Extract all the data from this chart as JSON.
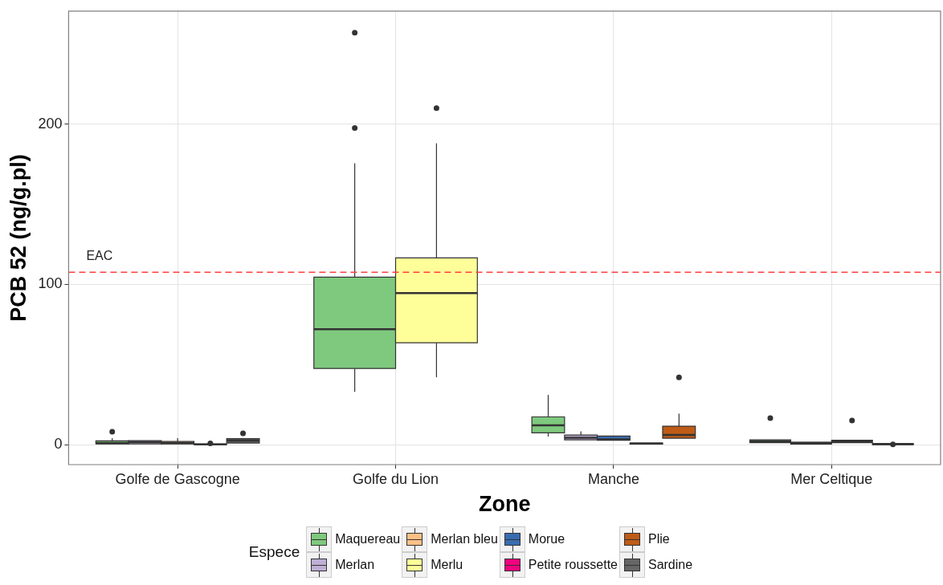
{
  "chart_data": {
    "type": "box",
    "xlabel": "Zone",
    "ylabel": "PCB 52 (ng/g.pl)",
    "legend_title": "Espece",
    "legend": "bottom",
    "grid": true,
    "categories": [
      "Golfe de Gascogne",
      "Golfe du Lion",
      "Manche",
      "Mer Celtique"
    ],
    "ylim": [
      -12.5,
      270.5
    ],
    "yticks": [
      0,
      100,
      200
    ],
    "ref_lines": [
      {
        "axis": "y",
        "value": 107.5,
        "label": "EAC",
        "color": "#ff4040",
        "line_style": "dashed"
      }
    ],
    "series": [
      {
        "name": "Maquereau",
        "color": "#7fc97f",
        "boxes": [
          {
            "low": 0,
            "q1": 0.4,
            "median": 1,
            "q3": 2.3,
            "high": 4,
            "outliers": [
              8
            ]
          },
          {
            "low": 33,
            "q1": 47.5,
            "median": 72,
            "q3": 104.5,
            "high": 175.5,
            "outliers": [
              197.5,
              257
            ]
          },
          {
            "low": 5,
            "q1": 7.3,
            "median": 12,
            "q3": 17.3,
            "high": 31
          },
          {
            "low": 0.5,
            "q1": 1.2,
            "median": 2,
            "q3": 3,
            "high": 3.5,
            "outliers": [
              16.5
            ]
          }
        ]
      },
      {
        "name": "Merlan",
        "color": "#beaed4",
        "boxes": [
          {
            "low": 0,
            "q1": 0.5,
            "median": 1.5,
            "q3": 2.5,
            "high": 3
          },
          null,
          {
            "low": 3,
            "q1": 3,
            "median": 4.3,
            "q3": 6,
            "high": 8.3
          },
          {
            "low": 0,
            "q1": 0.3,
            "median": 1,
            "q3": 1.5,
            "high": 1.5
          }
        ]
      },
      {
        "name": "Merlan bleu",
        "color": "#fdc086",
        "boxes": [
          {
            "low": 0,
            "q1": 0.5,
            "median": 1,
            "q3": 2,
            "high": 4
          },
          null,
          null,
          null
        ]
      },
      {
        "name": "Merlu",
        "color": "#ffff99",
        "boxes": [
          {
            "low": 0,
            "q1": 0.1,
            "median": 0.2,
            "q3": 0.3,
            "high": 0.4,
            "outliers": [
              0.8
            ]
          },
          {
            "low": 42,
            "q1": 63.5,
            "median": 94.5,
            "q3": 116.5,
            "high": 188,
            "outliers": [
              210
            ]
          },
          null,
          {
            "low": 1,
            "q1": 1.2,
            "median": 2,
            "q3": 2.7,
            "high": 3,
            "outliers": [
              15
            ]
          }
        ]
      },
      {
        "name": "Morue",
        "color": "#386cb0",
        "boxes": [
          null,
          null,
          {
            "low": 1.7,
            "q1": 2.7,
            "median": 3.3,
            "q3": 5.3,
            "high": 6
          },
          null
        ]
      },
      {
        "name": "Petite roussette",
        "color": "#f0027f",
        "boxes": [
          null,
          null,
          {
            "low": 0.3,
            "q1": 0.3,
            "median": 0.6,
            "q3": 1,
            "high": 1
          },
          null
        ]
      },
      {
        "name": "Plie",
        "color": "#bf5b17",
        "boxes": [
          null,
          null,
          {
            "low": 3.2,
            "q1": 4,
            "median": 6,
            "q3": 11.5,
            "high": 19.3,
            "outliers": [
              42
            ]
          },
          null
        ]
      },
      {
        "name": "Sardine",
        "color": "#666666",
        "boxes": [
          {
            "low": 0.5,
            "q1": 1,
            "median": 2.5,
            "q3": 3.7,
            "high": 4.5,
            "outliers": [
              7
            ]
          },
          null,
          null,
          {
            "low": 0,
            "q1": 0,
            "median": 0.3,
            "q3": 0.7,
            "high": 0.7,
            "outliers": [
              0.2
            ]
          }
        ]
      }
    ]
  }
}
